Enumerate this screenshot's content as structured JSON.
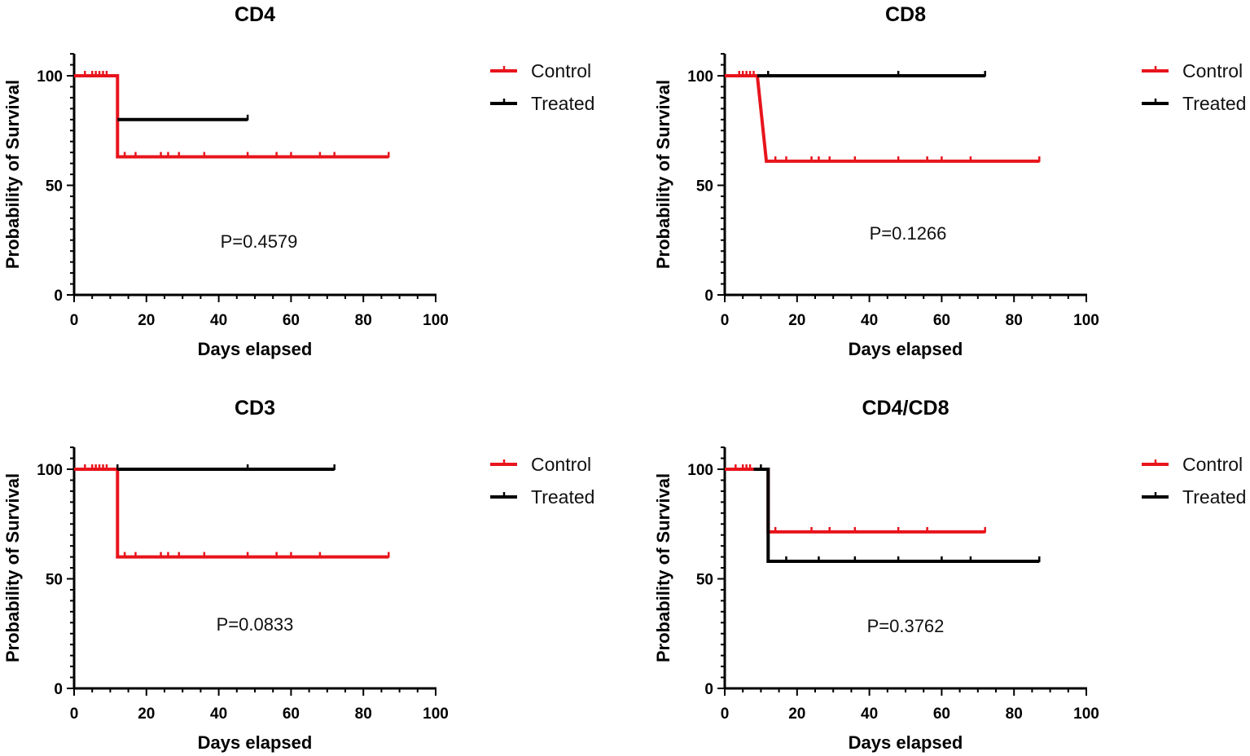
{
  "colors": {
    "control": "#e8141c",
    "treated": "#000000"
  },
  "chart_data": [
    {
      "type": "line",
      "title": "CD4",
      "xlabel": "Days elapsed",
      "ylabel": "Probability of Survival",
      "xlim": [
        0,
        100
      ],
      "ylim": [
        0,
        110
      ],
      "xticks": [
        "0",
        "20",
        "40",
        "60",
        "80",
        "100"
      ],
      "yticks": [
        "0",
        "50",
        "100"
      ],
      "pvalue": "P=0.4579",
      "series": [
        {
          "name": "Control",
          "color_key": "control",
          "steps": [
            [
              0,
              100
            ],
            [
              12,
              100
            ],
            [
              12,
              63
            ],
            [
              87,
              63
            ]
          ],
          "censors": [
            [
              3,
              100
            ],
            [
              5,
              100
            ],
            [
              6,
              100
            ],
            [
              7,
              100
            ],
            [
              8,
              100
            ],
            [
              9,
              100
            ],
            [
              14,
              63
            ],
            [
              17,
              63
            ],
            [
              24,
              63
            ],
            [
              26,
              63
            ],
            [
              29,
              63
            ],
            [
              36,
              63
            ],
            [
              48,
              63
            ],
            [
              56,
              63
            ],
            [
              60,
              63
            ],
            [
              68,
              63
            ],
            [
              72,
              63
            ],
            [
              87,
              63
            ]
          ]
        },
        {
          "name": "Treated",
          "color_key": "treated",
          "steps": [
            [
              12,
              80
            ],
            [
              48,
              80
            ]
          ],
          "censors": [
            [
              48,
              80
            ]
          ]
        }
      ]
    },
    {
      "type": "line",
      "title": "CD8",
      "xlabel": "Days elapsed",
      "ylabel": "Probability of Survival",
      "xlim": [
        0,
        100
      ],
      "ylim": [
        0,
        110
      ],
      "xticks": [
        "0",
        "20",
        "40",
        "60",
        "80",
        "100"
      ],
      "yticks": [
        "0",
        "50",
        "100"
      ],
      "pvalue": "P=0.1266",
      "series": [
        {
          "name": "Control",
          "color_key": "control",
          "steps": [
            [
              0,
              100
            ],
            [
              9,
              100
            ],
            [
              11.5,
              61
            ],
            [
              87,
              61
            ]
          ],
          "censors": [
            [
              4,
              100
            ],
            [
              5,
              100
            ],
            [
              6,
              100
            ],
            [
              7,
              100
            ],
            [
              8,
              100
            ],
            [
              14,
              61
            ],
            [
              17,
              61
            ],
            [
              24,
              61
            ],
            [
              26,
              61
            ],
            [
              29,
              61
            ],
            [
              36,
              61
            ],
            [
              48,
              61
            ],
            [
              56,
              61
            ],
            [
              60,
              61
            ],
            [
              68,
              61
            ],
            [
              87,
              61
            ]
          ]
        },
        {
          "name": "Treated",
          "color_key": "treated",
          "steps": [
            [
              9,
              100
            ],
            [
              72,
              100
            ]
          ],
          "censors": [
            [
              12,
              100
            ],
            [
              48,
              100
            ],
            [
              72,
              100
            ]
          ]
        }
      ]
    },
    {
      "type": "line",
      "title": "CD3",
      "xlabel": "Days elapsed",
      "ylabel": "Probability of Survival",
      "xlim": [
        0,
        100
      ],
      "ylim": [
        0,
        110
      ],
      "xticks": [
        "0",
        "20",
        "40",
        "60",
        "80",
        "100"
      ],
      "yticks": [
        "0",
        "50",
        "100"
      ],
      "pvalue": "P=0.0833",
      "series": [
        {
          "name": "Control",
          "color_key": "control",
          "steps": [
            [
              0,
              100
            ],
            [
              12,
              100
            ],
            [
              12,
              60
            ],
            [
              87,
              60
            ]
          ],
          "censors": [
            [
              3,
              100
            ],
            [
              5,
              100
            ],
            [
              6,
              100
            ],
            [
              7,
              100
            ],
            [
              8,
              100
            ],
            [
              9,
              100
            ],
            [
              14,
              60
            ],
            [
              17,
              60
            ],
            [
              24,
              60
            ],
            [
              26,
              60
            ],
            [
              29,
              60
            ],
            [
              36,
              60
            ],
            [
              48,
              60
            ],
            [
              56,
              60
            ],
            [
              60,
              60
            ],
            [
              68,
              60
            ],
            [
              87,
              60
            ]
          ]
        },
        {
          "name": "Treated",
          "color_key": "treated",
          "steps": [
            [
              12,
              100
            ],
            [
              72,
              100
            ]
          ],
          "censors": [
            [
              12,
              100
            ],
            [
              48,
              100
            ],
            [
              72,
              100
            ]
          ]
        }
      ]
    },
    {
      "type": "line",
      "title": "CD4/CD8",
      "xlabel": "Days elapsed",
      "ylabel": "Probability of Survival",
      "xlim": [
        0,
        100
      ],
      "ylim": [
        0,
        110
      ],
      "xticks": [
        "0",
        "20",
        "40",
        "60",
        "80",
        "100"
      ],
      "yticks": [
        "0",
        "50",
        "100"
      ],
      "pvalue": "P=0.3762",
      "series": [
        {
          "name": "Control",
          "color_key": "control",
          "steps": [
            [
              0,
              100
            ],
            [
              12,
              100
            ],
            [
              12,
              71.4
            ],
            [
              72,
              71.4
            ]
          ],
          "censors": [
            [
              3,
              100
            ],
            [
              5,
              100
            ],
            [
              6,
              100
            ],
            [
              7,
              100
            ],
            [
              14,
              71.4
            ],
            [
              24,
              71.4
            ],
            [
              29,
              71.4
            ],
            [
              36,
              71.4
            ],
            [
              48,
              71.4
            ],
            [
              56,
              71.4
            ],
            [
              72,
              71.4
            ]
          ]
        },
        {
          "name": "Treated",
          "color_key": "treated",
          "steps": [
            [
              8,
              100
            ],
            [
              10,
              100
            ],
            [
              12,
              100
            ],
            [
              12,
              58
            ],
            [
              87,
              58
            ]
          ],
          "censors": [
            [
              10,
              100
            ],
            [
              17,
              58
            ],
            [
              26,
              58
            ],
            [
              36,
              58
            ],
            [
              48,
              58
            ],
            [
              60,
              58
            ],
            [
              68,
              58
            ],
            [
              87,
              58
            ]
          ]
        }
      ]
    }
  ]
}
